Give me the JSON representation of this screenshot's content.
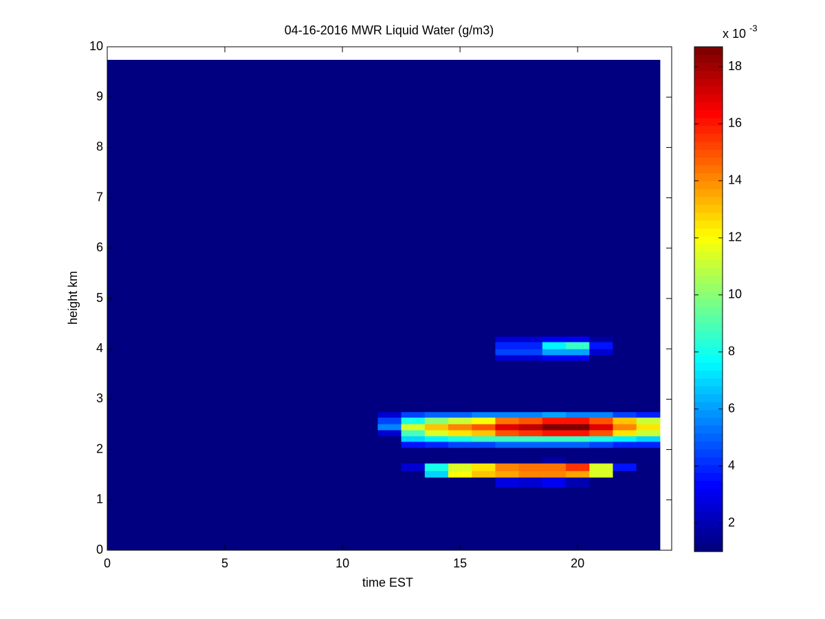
{
  "chart_data": {
    "type": "heatmap",
    "title": "04-16-2016 MWR Liquid Water (g/m3)",
    "x_label": "time EST",
    "y_label": "height km",
    "xlim": [
      0,
      24
    ],
    "xticks": [
      0,
      5,
      10,
      15,
      20
    ],
    "ylim": [
      0,
      10
    ],
    "yticks": [
      0,
      1,
      2,
      3,
      4,
      5,
      6,
      7,
      8,
      9,
      10
    ],
    "xbins": [
      0,
      0.5,
      1.5,
      2.5,
      3.5,
      4.5,
      5.5,
      6.5,
      7.5,
      8.5,
      9.5,
      10.5,
      11.5,
      12.5,
      13.5,
      14.5,
      15.5,
      16.5,
      17.5,
      18.5,
      19.5,
      20.5,
      21.5,
      22.5,
      23.5
    ],
    "ybins": [
      0,
      1.25,
      1.45,
      1.58,
      1.73,
      1.86,
      2.04,
      2.16,
      2.27,
      2.39,
      2.51,
      2.64,
      2.75,
      3.77,
      3.88,
      4.0,
      4.14,
      4.25,
      9.74
    ],
    "values": [
      [
        1,
        1,
        1,
        1,
        1,
        1,
        1,
        1,
        1,
        1,
        1,
        1,
        1,
        1,
        1,
        1,
        1,
        1,
        1,
        1,
        1,
        1,
        1,
        1
      ],
      [
        1,
        1,
        1,
        1,
        1,
        1,
        1,
        1,
        1,
        1,
        1,
        1,
        1,
        1,
        1,
        1,
        1,
        2.8,
        2.4,
        3.0,
        2.0,
        1,
        1,
        1
      ],
      [
        1,
        1,
        1,
        1,
        1,
        1,
        1,
        1,
        1,
        1,
        1,
        1,
        1,
        1,
        7,
        12,
        13,
        13.5,
        14,
        14,
        13.5,
        11.5,
        1,
        1
      ],
      [
        1,
        1,
        1,
        1,
        1,
        1,
        1,
        1,
        1,
        1,
        1,
        1,
        1,
        2.5,
        8,
        11.5,
        12.5,
        14,
        14.5,
        14.5,
        15.5,
        11.5,
        3.5,
        1
      ],
      [
        1,
        1,
        1,
        1,
        1,
        1,
        1,
        1,
        1,
        1,
        1,
        1,
        1,
        1,
        1,
        1,
        1,
        1,
        1,
        1.8,
        1,
        1,
        1,
        1
      ],
      [
        1,
        1,
        1,
        1,
        1,
        1,
        1,
        1,
        1,
        1,
        1,
        1,
        1,
        1,
        1,
        1,
        1,
        1,
        1,
        1,
        1,
        1,
        1,
        1
      ],
      [
        1,
        1,
        1,
        1,
        1,
        1,
        1,
        1,
        1,
        1,
        1,
        1,
        1,
        3.5,
        4,
        4.5,
        4.5,
        5,
        5,
        5,
        5,
        4.5,
        4,
        4
      ],
      [
        1,
        1,
        1,
        1,
        1,
        1,
        1,
        1,
        1,
        1,
        1,
        1,
        1,
        7,
        7.5,
        8,
        8.5,
        8.5,
        8.5,
        8.5,
        8.5,
        8,
        7.5,
        7
      ],
      [
        1,
        1,
        1,
        1,
        1,
        1,
        1,
        1,
        1,
        1,
        1,
        1,
        2.5,
        9,
        11.5,
        12.5,
        13,
        15,
        15.5,
        16,
        16,
        15,
        12.5,
        11
      ],
      [
        1,
        1,
        1,
        1,
        1,
        1,
        1,
        1,
        1,
        1,
        1,
        1,
        5.5,
        11.5,
        13,
        14,
        15,
        17,
        17.5,
        18.5,
        18.5,
        17,
        14,
        12.5
      ],
      [
        1,
        1,
        1,
        1,
        1,
        1,
        1,
        1,
        1,
        1,
        1,
        1,
        4.5,
        8,
        10,
        11,
        12,
        14.5,
        15,
        16,
        16,
        15,
        13,
        11
      ],
      [
        1,
        1,
        1,
        1,
        1,
        1,
        1,
        1,
        1,
        1,
        1,
        1,
        2.5,
        4.5,
        5,
        5,
        5.5,
        5.5,
        5.5,
        6,
        5.5,
        5.5,
        4.5,
        4
      ],
      [
        1,
        1,
        1,
        1,
        1,
        1,
        1,
        1,
        1,
        1,
        1,
        1,
        1,
        1,
        1,
        1,
        1,
        1,
        1,
        1,
        1,
        1,
        1,
        1
      ],
      [
        1,
        1,
        1,
        1,
        1,
        1,
        1,
        1,
        1,
        1,
        1,
        1,
        1,
        1,
        1,
        1,
        1,
        2.5,
        2.5,
        3,
        3,
        1,
        1,
        1
      ],
      [
        1,
        1,
        1,
        1,
        1,
        1,
        1,
        1,
        1,
        1,
        1,
        1,
        1,
        1,
        1,
        1,
        1,
        4.5,
        4.5,
        6,
        6,
        2.5,
        1,
        1
      ],
      [
        1,
        1,
        1,
        1,
        1,
        1,
        1,
        1,
        1,
        1,
        1,
        1,
        1,
        1,
        1,
        1,
        1,
        4,
        4,
        7.5,
        8.5,
        3.5,
        1,
        1
      ],
      [
        1,
        1,
        1,
        1,
        1,
        1,
        1,
        1,
        1,
        1,
        1,
        1,
        1,
        1,
        1,
        1,
        1,
        2.5,
        2.5,
        3,
        3,
        1.8,
        1,
        1
      ],
      [
        1,
        1,
        1,
        1,
        1,
        1,
        1,
        1,
        1,
        1,
        1,
        1,
        1,
        1,
        1,
        1,
        1,
        1,
        1,
        1,
        1,
        1,
        1,
        1
      ]
    ],
    "colormap": "jet",
    "clim": [
      1,
      18.7
    ],
    "cticks": [
      2,
      4,
      6,
      8,
      10,
      12,
      14,
      16,
      18
    ],
    "colorbar_multiplier": "x 10",
    "colorbar_exponent": "-3"
  }
}
